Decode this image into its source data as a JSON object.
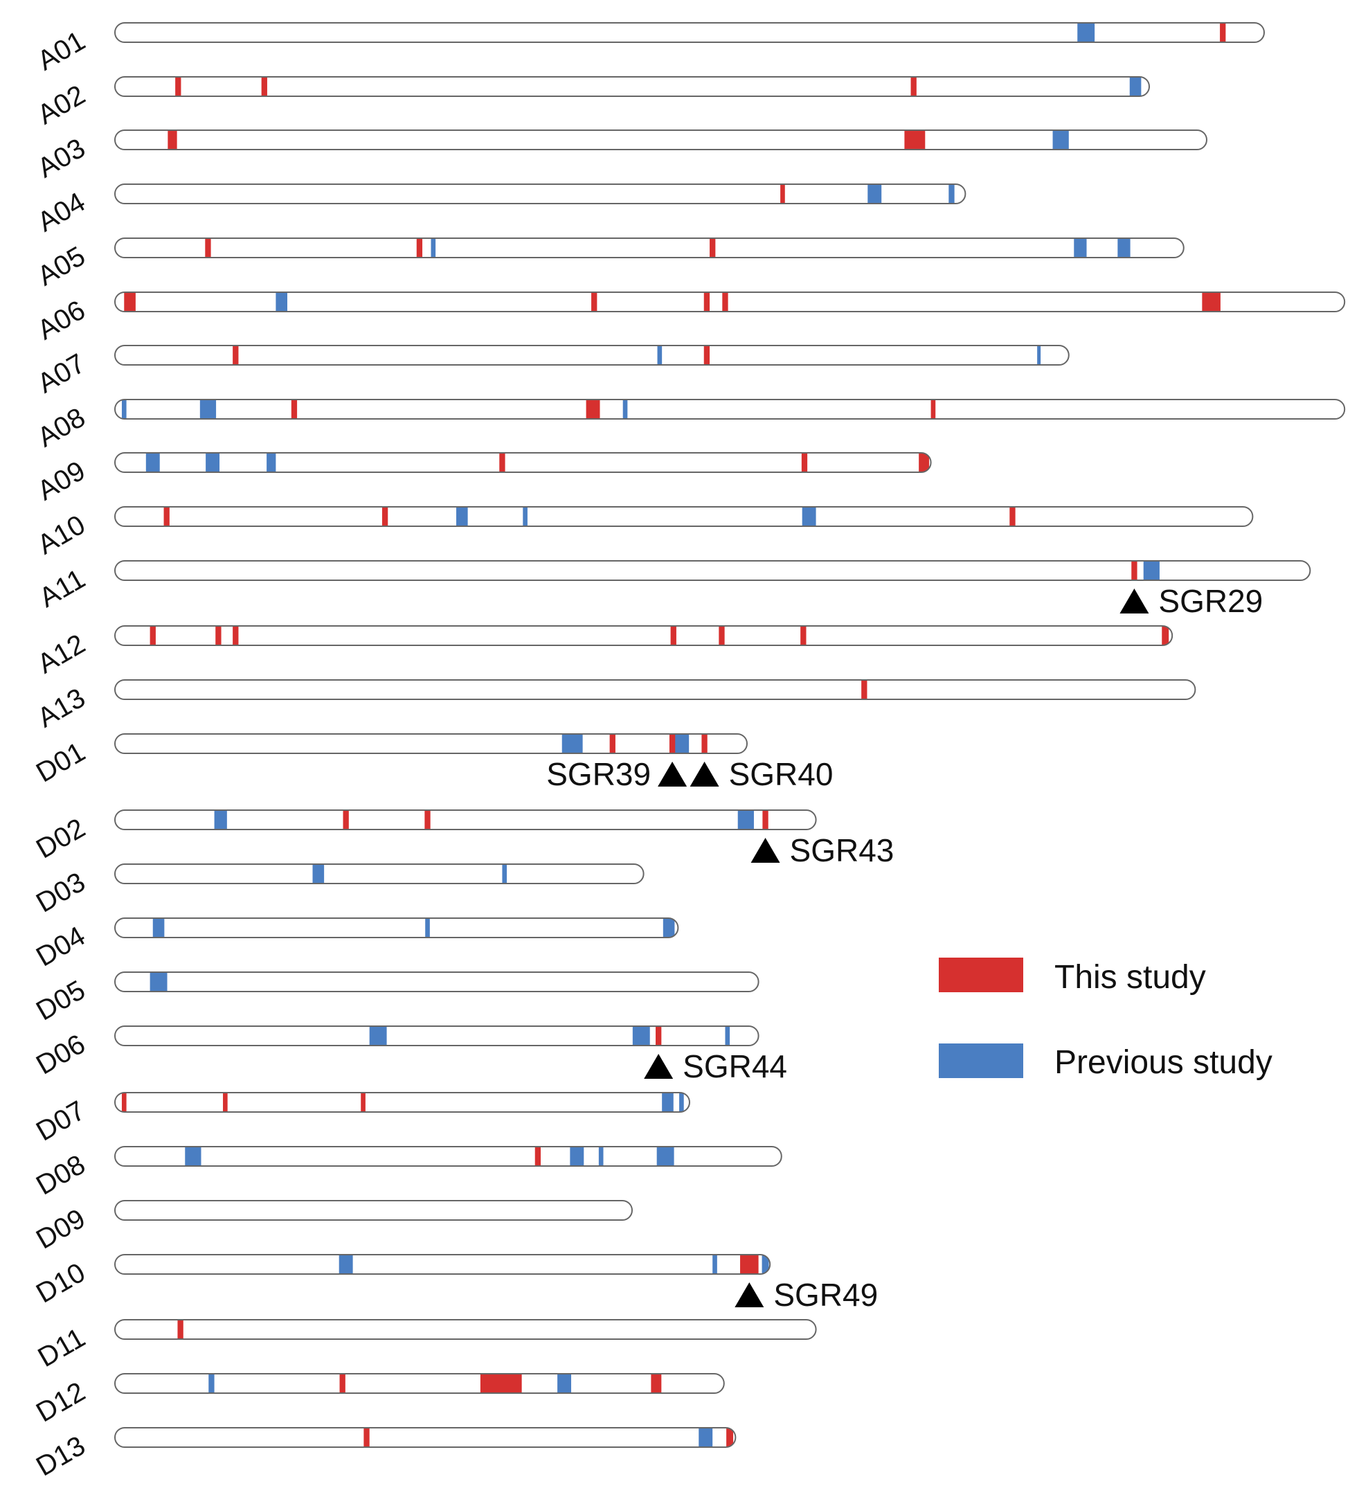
{
  "chart_data": {
    "type": "chromosome-map",
    "chromosomes": [
      {
        "id": "A01",
        "length": 100,
        "this_study": [
          {
            "pos": 96.4,
            "w": 0.5
          }
        ],
        "previous_study": [
          {
            "pos": 84.5,
            "w": 1.5
          }
        ]
      },
      {
        "id": "A02",
        "length": 90,
        "this_study": [
          {
            "pos": 5.5,
            "w": 0.5
          },
          {
            "pos": 13,
            "w": 0.5
          },
          {
            "pos": 69.5,
            "w": 0.5
          }
        ],
        "previous_study": [
          {
            "pos": 88.8,
            "w": 1.0
          }
        ]
      },
      {
        "id": "A03",
        "length": 95,
        "this_study": [
          {
            "pos": 5,
            "w": 0.8
          },
          {
            "pos": 69.6,
            "w": 1.8
          }
        ],
        "previous_study": [
          {
            "pos": 82.3,
            "w": 1.4
          }
        ]
      },
      {
        "id": "A04",
        "length": 74,
        "this_study": [
          {
            "pos": 58.1,
            "w": 0.4
          }
        ],
        "previous_study": [
          {
            "pos": 66.1,
            "w": 1.2
          },
          {
            "pos": 72.8,
            "w": 0.5
          }
        ]
      },
      {
        "id": "A05",
        "length": 93,
        "this_study": [
          {
            "pos": 8.1,
            "w": 0.5
          },
          {
            "pos": 26.5,
            "w": 0.5
          },
          {
            "pos": 52,
            "w": 0.5
          }
        ],
        "previous_study": [
          {
            "pos": 27.7,
            "w": 0.4
          },
          {
            "pos": 84,
            "w": 1.1
          },
          {
            "pos": 87.8,
            "w": 1.1
          }
        ]
      },
      {
        "id": "A06",
        "length": 107,
        "this_study": [
          {
            "pos": 1.3,
            "w": 1.0
          },
          {
            "pos": 41.7,
            "w": 0.5
          },
          {
            "pos": 51.5,
            "w": 0.5
          },
          {
            "pos": 53.1,
            "w": 0.5
          },
          {
            "pos": 95.4,
            "w": 1.6
          }
        ],
        "previous_study": [
          {
            "pos": 14.5,
            "w": 1.0
          }
        ]
      },
      {
        "id": "A07",
        "length": 83,
        "this_study": [
          {
            "pos": 10.5,
            "w": 0.5
          },
          {
            "pos": 51.5,
            "w": 0.5
          }
        ],
        "previous_study": [
          {
            "pos": 47.4,
            "w": 0.4
          },
          {
            "pos": 80.4,
            "w": 0.3
          }
        ]
      },
      {
        "id": "A08",
        "length": 107,
        "this_study": [
          {
            "pos": 15.6,
            "w": 0.5
          },
          {
            "pos": 41.6,
            "w": 1.2
          },
          {
            "pos": 71.2,
            "w": 0.4
          }
        ],
        "previous_study": [
          {
            "pos": 0.8,
            "w": 0.4
          },
          {
            "pos": 8.1,
            "w": 1.4
          },
          {
            "pos": 44.4,
            "w": 0.4
          }
        ]
      },
      {
        "id": "A09",
        "length": 71,
        "this_study": [
          {
            "pos": 33.7,
            "w": 0.5
          },
          {
            "pos": 60,
            "w": 0.5
          },
          {
            "pos": 70.4,
            "w": 0.9
          }
        ],
        "previous_study": [
          {
            "pos": 3.3,
            "w": 1.2
          },
          {
            "pos": 8.5,
            "w": 1.2
          },
          {
            "pos": 13.6,
            "w": 0.8
          }
        ]
      },
      {
        "id": "A10",
        "length": 99,
        "this_study": [
          {
            "pos": 4.5,
            "w": 0.5
          },
          {
            "pos": 23.5,
            "w": 0.5
          },
          {
            "pos": 78.1,
            "w": 0.5
          }
        ],
        "previous_study": [
          {
            "pos": 30.2,
            "w": 1.0
          },
          {
            "pos": 35.7,
            "w": 0.4
          },
          {
            "pos": 60.4,
            "w": 1.2
          }
        ]
      },
      {
        "id": "A11",
        "length": 104,
        "this_study": [
          {
            "pos": 88.7,
            "w": 0.5
          }
        ],
        "previous_study": [
          {
            "pos": 90.2,
            "w": 1.4
          }
        ],
        "marker": {
          "label": "SGR29",
          "side": "right",
          "pos": 88.7
        }
      },
      {
        "id": "A12",
        "length": 92,
        "this_study": [
          {
            "pos": 3.3,
            "w": 0.5
          },
          {
            "pos": 9.0,
            "w": 0.5
          },
          {
            "pos": 10.5,
            "w": 0.5
          },
          {
            "pos": 48.6,
            "w": 0.5
          },
          {
            "pos": 52.8,
            "w": 0.5
          },
          {
            "pos": 59.9,
            "w": 0.5
          },
          {
            "pos": 91.4,
            "w": 0.6
          }
        ],
        "previous_study": []
      },
      {
        "id": "A13",
        "length": 94,
        "this_study": [
          {
            "pos": 65.2,
            "w": 0.5
          }
        ],
        "previous_study": []
      },
      {
        "id": "D01",
        "length": 55,
        "this_study": [
          {
            "pos": 43.3,
            "w": 0.5
          },
          {
            "pos": 48.5,
            "w": 0.5
          },
          {
            "pos": 51.3,
            "w": 0.5
          }
        ],
        "previous_study": [
          {
            "pos": 39.8,
            "w": 1.8
          },
          {
            "pos": 49.2,
            "w": 1.5
          }
        ],
        "markers": [
          {
            "label": "SGR39",
            "side": "left",
            "pos": 48.5
          },
          {
            "label": "SGR40",
            "side": "right",
            "pos": 51.3
          }
        ]
      },
      {
        "id": "D02",
        "length": 61,
        "this_study": [
          {
            "pos": 20.1,
            "w": 0.5
          },
          {
            "pos": 27.2,
            "w": 0.5
          },
          {
            "pos": 56.6,
            "w": 0.5
          }
        ],
        "previous_study": [
          {
            "pos": 9.2,
            "w": 1.1
          },
          {
            "pos": 54.9,
            "w": 1.4
          }
        ],
        "marker": {
          "label": "SGR43",
          "side": "right",
          "pos": 56.6
        }
      },
      {
        "id": "D03",
        "length": 46,
        "this_study": [],
        "previous_study": [
          {
            "pos": 17.7,
            "w": 1.0
          },
          {
            "pos": 33.9,
            "w": 0.4
          }
        ]
      },
      {
        "id": "D04",
        "length": 49,
        "this_study": [],
        "previous_study": [
          {
            "pos": 3.8,
            "w": 1.0
          },
          {
            "pos": 27.2,
            "w": 0.4
          },
          {
            "pos": 48.2,
            "w": 1.0
          }
        ]
      },
      {
        "id": "D05",
        "length": 56,
        "this_study": [],
        "previous_study": [
          {
            "pos": 3.8,
            "w": 1.5
          }
        ]
      },
      {
        "id": "D06",
        "length": 56,
        "this_study": [
          {
            "pos": 47.3,
            "w": 0.5
          }
        ],
        "previous_study": [
          {
            "pos": 22.9,
            "w": 1.5
          },
          {
            "pos": 45.8,
            "w": 1.5
          },
          {
            "pos": 53.3,
            "w": 0.4
          }
        ],
        "marker": {
          "label": "SGR44",
          "side": "right",
          "pos": 47.3
        }
      },
      {
        "id": "D07",
        "length": 50,
        "this_study": [
          {
            "pos": 0.8,
            "w": 0.4
          },
          {
            "pos": 9.6,
            "w": 0.4
          },
          {
            "pos": 21.6,
            "w": 0.4
          }
        ],
        "previous_study": [
          {
            "pos": 48.1,
            "w": 1.0
          },
          {
            "pos": 49.3,
            "w": 0.4
          }
        ]
      },
      {
        "id": "D08",
        "length": 58,
        "this_study": [
          {
            "pos": 36.8,
            "w": 0.5
          }
        ],
        "previous_study": [
          {
            "pos": 6.8,
            "w": 1.4
          },
          {
            "pos": 40.2,
            "w": 1.2
          },
          {
            "pos": 42.3,
            "w": 0.4
          },
          {
            "pos": 47.9,
            "w": 1.5
          }
        ]
      },
      {
        "id": "D09",
        "length": 45,
        "this_study": [],
        "previous_study": []
      },
      {
        "id": "D10",
        "length": 57,
        "this_study": [
          {
            "pos": 55.2,
            "w": 1.6
          }
        ],
        "previous_study": [
          {
            "pos": 20.1,
            "w": 1.2
          },
          {
            "pos": 52.2,
            "w": 0.4
          },
          {
            "pos": 56.6,
            "w": 0.6
          }
        ],
        "marker": {
          "label": "SGR49",
          "side": "right",
          "pos": 55.2
        }
      },
      {
        "id": "D11",
        "length": 61,
        "this_study": [
          {
            "pos": 5.7,
            "w": 0.5
          }
        ],
        "previous_study": []
      },
      {
        "id": "D12",
        "length": 53,
        "this_study": [
          {
            "pos": 19.8,
            "w": 0.5
          },
          {
            "pos": 33.6,
            "w": 3.6
          },
          {
            "pos": 47.1,
            "w": 0.9
          }
        ],
        "previous_study": [
          {
            "pos": 8.4,
            "w": 0.5
          },
          {
            "pos": 39.1,
            "w": 1.2
          }
        ]
      },
      {
        "id": "D13",
        "length": 54,
        "this_study": [
          {
            "pos": 21.9,
            "w": 0.5
          },
          {
            "pos": 53.5,
            "w": 0.6
          }
        ],
        "previous_study": [
          {
            "pos": 51.4,
            "w": 1.2
          }
        ]
      }
    ],
    "legend": [
      {
        "label": "This study",
        "color": "#d6302f"
      },
      {
        "label": "Previous study",
        "color": "#4a7ec2"
      }
    ],
    "colors": {
      "this_study": "#d6302f",
      "previous_study": "#4a7ec2",
      "outline": "#666666",
      "marker": "#000000"
    }
  }
}
